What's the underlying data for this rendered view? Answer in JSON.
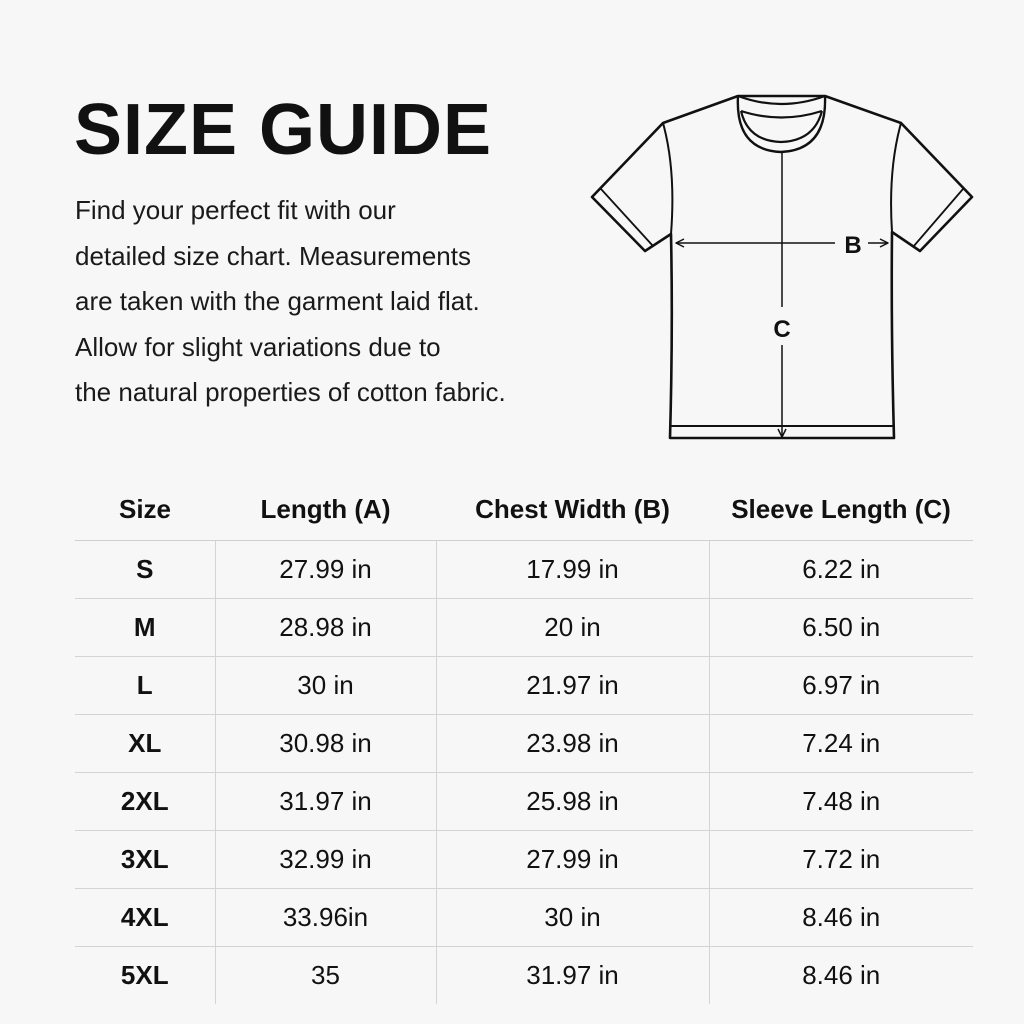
{
  "title": "SIZE GUIDE",
  "description_lines": [
    "Find your perfect fit with our",
    "detailed size chart. Measurements",
    "are taken with the garment laid flat.",
    "Allow for slight variations due to",
    "the natural properties of cotton fabric."
  ],
  "diagram": {
    "label_b": "B",
    "label_c": "C",
    "icon": "t-shirt-outline"
  },
  "table": {
    "headers": [
      "Size",
      "Length (A)",
      "Chest Width (B)",
      "Sleeve Length (C)"
    ],
    "rows": [
      [
        "S",
        "27.99 in",
        "17.99 in",
        "6.22 in"
      ],
      [
        "M",
        "28.98 in",
        "20 in",
        "6.50 in"
      ],
      [
        "L",
        "30 in",
        "21.97 in",
        "6.97 in"
      ],
      [
        "XL",
        "30.98 in",
        "23.98 in",
        "7.24 in"
      ],
      [
        "2XL",
        "31.97 in",
        "25.98 in",
        "7.48 in"
      ],
      [
        "3XL",
        "32.99 in",
        "27.99 in",
        "7.72 in"
      ],
      [
        "4XL",
        "33.96in",
        "30 in",
        "8.46 in"
      ],
      [
        "5XL",
        "35",
        "31.97 in",
        "8.46 in"
      ]
    ]
  }
}
